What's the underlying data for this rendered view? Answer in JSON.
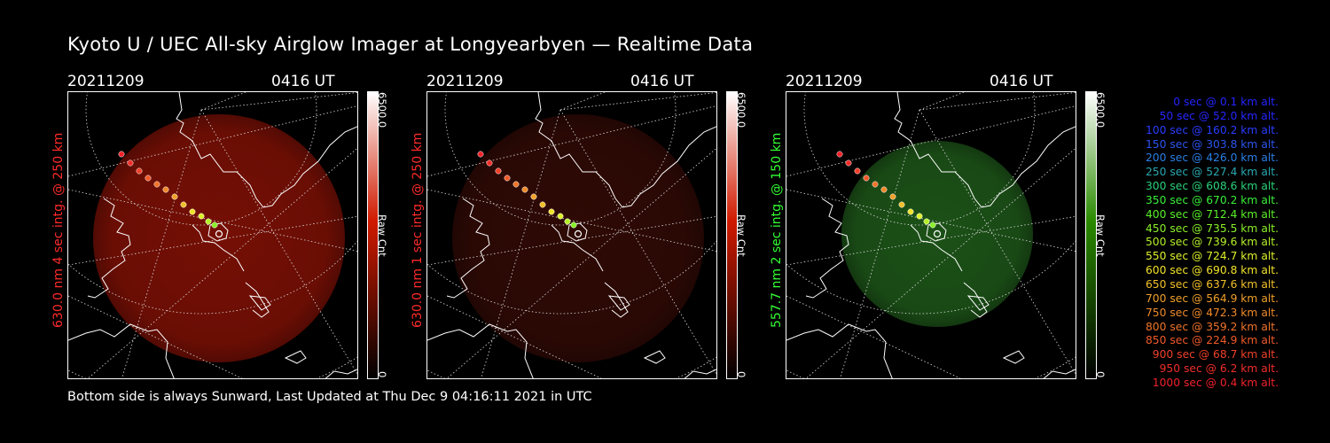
{
  "title": "Kyoto U / UEC All-sky Airglow Imager at Longyearbyen — Realtime Data",
  "footer": "Bottom side is always Sunward, Last Updated at Thu Dec  9 04:16:11 2021 in UTC",
  "panels": [
    {
      "date": "20211209",
      "time": "0416 UT",
      "ylabel": "630.0 nm  4 sec intg. @ 250 km",
      "label_color": "#ff2a2a",
      "cbar_max": "6500.0",
      "cbar_min": "0",
      "cbar_unit": "Raw Cnt",
      "cbar_color": "#d01a00",
      "glow": "#8a1206",
      "glow_opacity": 0.85
    },
    {
      "date": "20211209",
      "time": "0416 UT",
      "ylabel": "630.0 nm  1 sec intg. @ 250 km",
      "label_color": "#ff2a2a",
      "cbar_max": "6500.0",
      "cbar_min": "0",
      "cbar_unit": "Raw Cnt",
      "cbar_color": "#d01a00",
      "glow": "#3a0c06",
      "glow_opacity": 0.8
    },
    {
      "date": "20211209",
      "time": "0416 UT",
      "ylabel": "557.7 nm  2 sec intg. @ 150 km",
      "label_color": "#33ff33",
      "cbar_max": "6500.0",
      "cbar_min": "0",
      "cbar_unit": "Raw Cnt",
      "cbar_color": "#2a8a00",
      "glow": "#1f5a1a",
      "glow_opacity": 0.9
    }
  ],
  "legend": [
    {
      "text": "0 sec @    0.1 km alt.",
      "color": "#2323ff"
    },
    {
      "text": "50 sec @   52.0 km alt.",
      "color": "#2626ff"
    },
    {
      "text": "100 sec @  160.2 km alt.",
      "color": "#2a3cff"
    },
    {
      "text": "150 sec @  303.8 km alt.",
      "color": "#2a55f0"
    },
    {
      "text": "200 sec @  426.0 km alt.",
      "color": "#2a7fe6"
    },
    {
      "text": "250 sec @  527.4 km alt.",
      "color": "#2aa8b0"
    },
    {
      "text": "300 sec @  608.6 km alt.",
      "color": "#2ad27a"
    },
    {
      "text": "350 sec @  670.2 km alt.",
      "color": "#3aee3a"
    },
    {
      "text": "400 sec @  712.4 km alt.",
      "color": "#5af02a"
    },
    {
      "text": "450 sec @  735.5 km alt.",
      "color": "#8af02a"
    },
    {
      "text": "500 sec @  739.6 km alt.",
      "color": "#b4f02a"
    },
    {
      "text": "550 sec @  724.7 km alt.",
      "color": "#ddf02a"
    },
    {
      "text": "600 sec @  690.8 km alt.",
      "color": "#f0e22a"
    },
    {
      "text": "650 sec @  637.6 km alt.",
      "color": "#f0c02a"
    },
    {
      "text": "700 sec @  564.9 km alt.",
      "color": "#f0a02a"
    },
    {
      "text": "750 sec @  472.3 km alt.",
      "color": "#f08a2a"
    },
    {
      "text": "800 sec @  359.2 km alt.",
      "color": "#f0742a"
    },
    {
      "text": "850 sec @  224.9 km alt.",
      "color": "#f05a2a"
    },
    {
      "text": "900 sec @   68.7 km alt.",
      "color": "#f0402a"
    },
    {
      "text": "950 sec @    6.2 km alt.",
      "color": "#f02e2a"
    },
    {
      "text": "1000 sec @    0.4 km alt.",
      "color": "#f0222a"
    }
  ]
}
